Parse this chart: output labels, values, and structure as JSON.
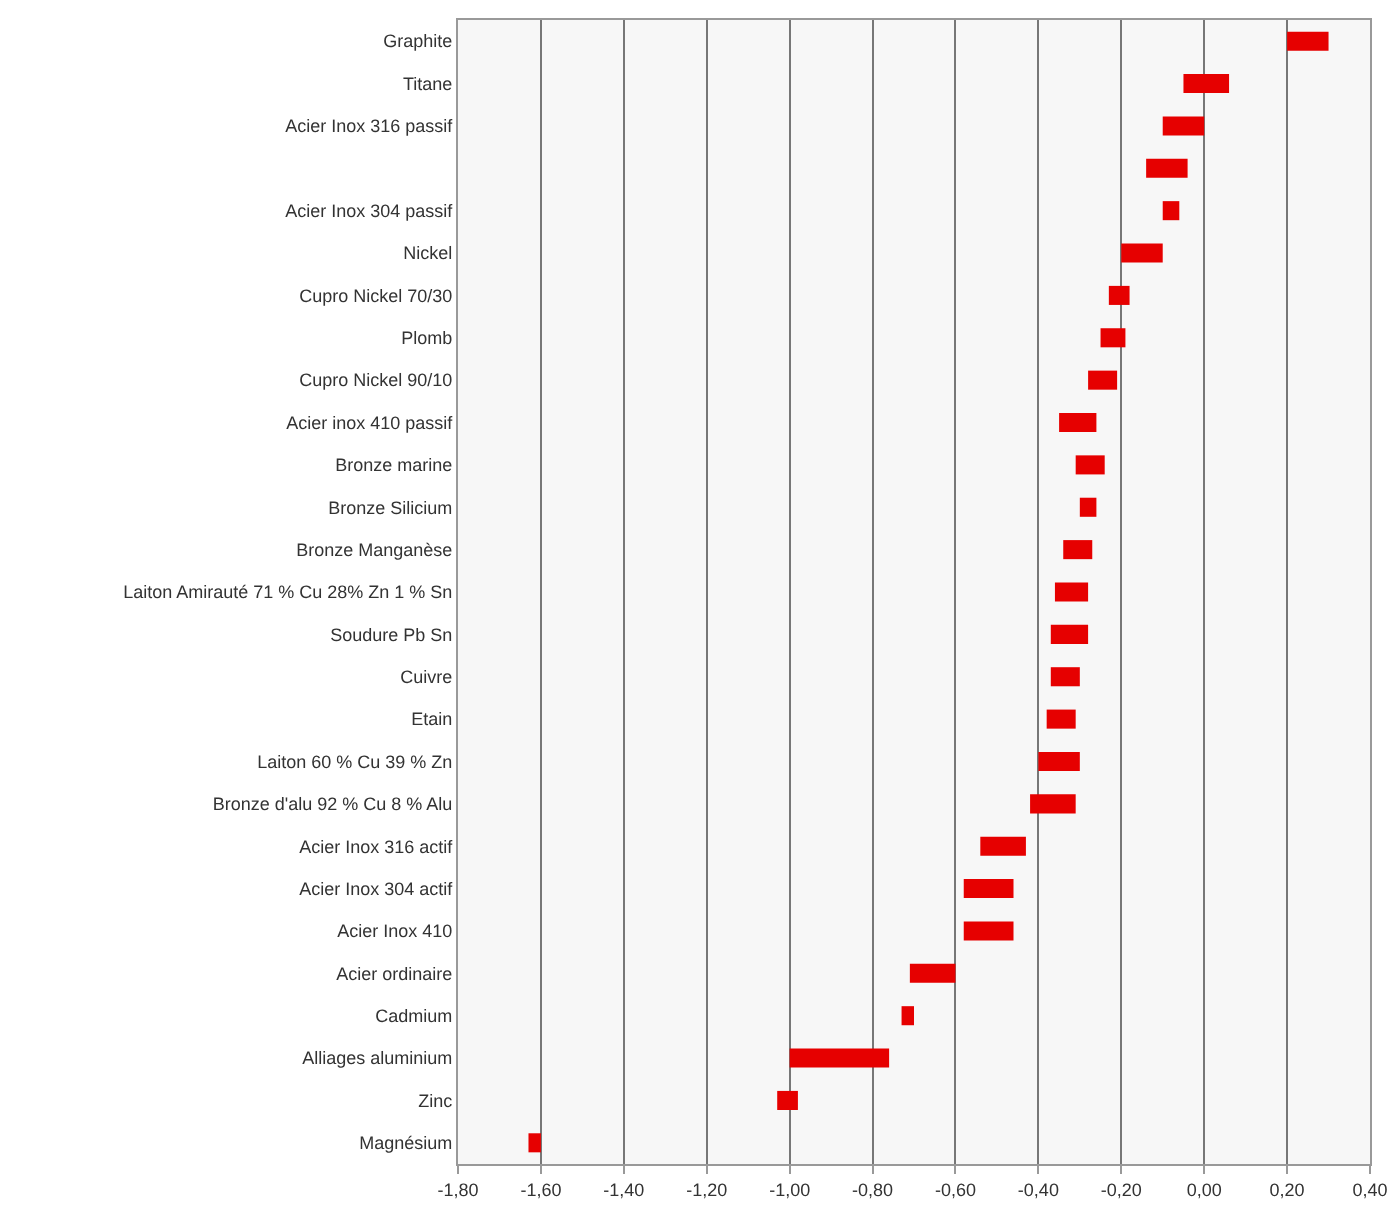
{
  "chart_data": {
    "type": "bar",
    "orientation": "horizontal",
    "categories": [
      "Graphite",
      "Titane",
      "Acier Inox 316 passif",
      null,
      "Acier Inox 304 passif",
      "Nickel",
      "Cupro Nickel 70/30",
      "Plomb",
      "Cupro Nickel 90/10",
      "Acier inox 410 passif",
      "Bronze marine",
      "Bronze Silicium",
      "Bronze Manganèse",
      "Laiton Amirauté 71 % Cu 28% Zn 1 % Sn",
      "Soudure Pb Sn",
      "Cuivre",
      "Etain",
      "Laiton 60 % Cu 39 % Zn",
      "Bronze d'alu 92 % Cu 8 % Alu",
      "Acier Inox 316 actif",
      "Acier Inox 304 actif",
      "Acier Inox 410",
      "Acier ordinaire",
      "Cadmium",
      "Alliages aluminium",
      "Zinc",
      "Magnésium"
    ],
    "base": [
      0.2,
      -0.05,
      -0.1,
      -0.14,
      -0.1,
      -0.2,
      -0.23,
      -0.25,
      -0.28,
      -0.35,
      -0.31,
      -0.3,
      -0.34,
      -0.36,
      -0.37,
      -0.37,
      -0.38,
      -0.4,
      -0.42,
      -0.54,
      -0.58,
      -0.58,
      -0.71,
      -0.73,
      -1.0,
      -1.03,
      -1.63
    ],
    "values": [
      0.1,
      0.11,
      0.1,
      0.1,
      0.04,
      0.1,
      0.05,
      0.06,
      0.07,
      0.09,
      0.07,
      0.04,
      0.07,
      0.08,
      0.09,
      0.07,
      0.07,
      0.1,
      0.11,
      0.11,
      0.12,
      0.12,
      0.11,
      0.03,
      0.24,
      0.05,
      0.03
    ],
    "color": "#e60000",
    "xlim": [
      -1.8,
      0.4
    ],
    "xticks": [
      {
        "value": -1.8,
        "label": "-1,80"
      },
      {
        "value": -1.6,
        "label": "-1,60"
      },
      {
        "value": -1.4,
        "label": "-1,40"
      },
      {
        "value": -1.2,
        "label": "-1,20"
      },
      {
        "value": -1.0,
        "label": "-1,00"
      },
      {
        "value": -0.8,
        "label": "-0,80"
      },
      {
        "value": -0.6,
        "label": "-0,60"
      },
      {
        "value": -0.4,
        "label": "-0,40"
      },
      {
        "value": -0.2,
        "label": "-0,20"
      },
      {
        "value": 0,
        "label": "0,00"
      },
      {
        "value": 0.2,
        "label": "0,20"
      },
      {
        "value": 0.4,
        "label": "0,40"
      }
    ],
    "grid": "x"
  }
}
